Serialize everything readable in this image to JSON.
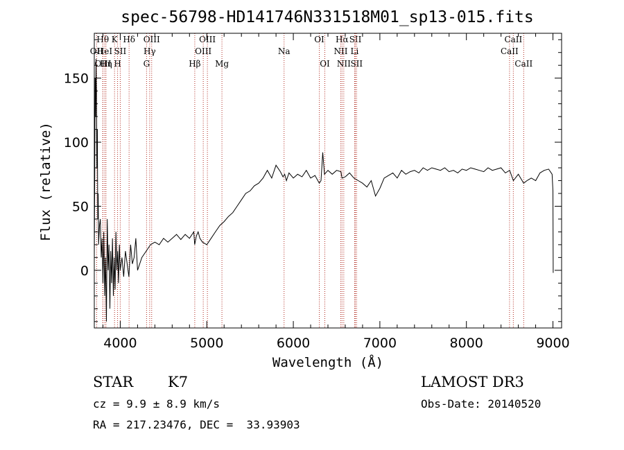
{
  "chart_data": {
    "type": "line",
    "title": "spec-56798-HD141746N331518M01_sp13-015.fits",
    "xlabel": "Wavelength (Å)",
    "ylabel": "Flux (relative)",
    "xlim": [
      3700,
      9100
    ],
    "ylim": [
      -45,
      185
    ],
    "xticks": [
      4000,
      5000,
      6000,
      7000,
      8000,
      9000
    ],
    "yticks": [
      0,
      50,
      100,
      150
    ],
    "grid": false,
    "line_color": "#000000",
    "marker_color": "#b0281e",
    "spectrum": {
      "x": [
        3700,
        3705,
        3710,
        3715,
        3720,
        3725,
        3730,
        3735,
        3740,
        3745,
        3750,
        3760,
        3770,
        3780,
        3790,
        3800,
        3810,
        3820,
        3830,
        3840,
        3850,
        3860,
        3870,
        3880,
        3890,
        3900,
        3910,
        3920,
        3930,
        3940,
        3950,
        3960,
        3970,
        3980,
        3990,
        4000,
        4020,
        4040,
        4060,
        4080,
        4100,
        4120,
        4140,
        4160,
        4180,
        4200,
        4250,
        4300,
        4350,
        4400,
        4450,
        4500,
        4550,
        4600,
        4650,
        4700,
        4750,
        4800,
        4850,
        4860,
        4880,
        4900,
        4920,
        4950,
        5000,
        5050,
        5100,
        5150,
        5200,
        5250,
        5300,
        5350,
        5400,
        5450,
        5500,
        5550,
        5600,
        5650,
        5700,
        5750,
        5800,
        5850,
        5880,
        5900,
        5920,
        5950,
        6000,
        6050,
        6100,
        6150,
        6200,
        6250,
        6300,
        6320,
        6340,
        6360,
        6400,
        6450,
        6500,
        6550,
        6563,
        6600,
        6650,
        6700,
        6750,
        6800,
        6850,
        6900,
        6950,
        7000,
        7050,
        7100,
        7150,
        7200,
        7250,
        7300,
        7350,
        7400,
        7450,
        7500,
        7550,
        7600,
        7650,
        7700,
        7750,
        7800,
        7850,
        7900,
        7950,
        8000,
        8050,
        8100,
        8150,
        8200,
        8250,
        8300,
        8350,
        8400,
        8450,
        8500,
        8542,
        8600,
        8662,
        8700,
        8750,
        8800,
        8850,
        8900,
        8950,
        8990,
        9000,
        9003
      ],
      "y": [
        10,
        70,
        150,
        120,
        165,
        140,
        80,
        110,
        40,
        60,
        20,
        35,
        40,
        10,
        25,
        -10,
        30,
        -20,
        10,
        -40,
        40,
        0,
        20,
        -30,
        15,
        -10,
        25,
        -20,
        10,
        -15,
        30,
        0,
        15,
        -10,
        20,
        0,
        10,
        -5,
        15,
        5,
        -5,
        20,
        5,
        10,
        25,
        0,
        10,
        15,
        20,
        22,
        20,
        25,
        22,
        25,
        28,
        24,
        28,
        25,
        30,
        20,
        27,
        30,
        25,
        22,
        20,
        25,
        30,
        35,
        38,
        42,
        45,
        50,
        55,
        60,
        62,
        66,
        68,
        72,
        78,
        72,
        82,
        77,
        73,
        75,
        70,
        76,
        72,
        75,
        73,
        78,
        72,
        74,
        68,
        70,
        92,
        75,
        78,
        75,
        78,
        77,
        72,
        73,
        76,
        72,
        70,
        68,
        65,
        70,
        58,
        64,
        72,
        74,
        76,
        72,
        78,
        75,
        77,
        78,
        76,
        80,
        78,
        80,
        79,
        78,
        80,
        77,
        78,
        76,
        79,
        78,
        80,
        79,
        78,
        77,
        80,
        78,
        79,
        80,
        76,
        78,
        70,
        75,
        68,
        70,
        72,
        70,
        76,
        78,
        79,
        75,
        62,
        -2
      ]
    },
    "line_markers": [
      {
        "label": "OII",
        "x": 3727,
        "row": 1
      },
      {
        "label": "Hθ",
        "x": 3798,
        "row": 0
      },
      {
        "label": "OIII",
        "x": 3800,
        "row": 2
      },
      {
        "label": "HeI",
        "x": 3820,
        "row": 1
      },
      {
        "label": "Hη",
        "x": 3835,
        "row": 2
      },
      {
        "label": "K",
        "x": 3934,
        "row": 0
      },
      {
        "label": "SII",
        "x": 4000,
        "row": 1
      },
      {
        "label": "H",
        "x": 3969,
        "row": 2
      },
      {
        "label": "Hδ",
        "x": 4102,
        "row": 0
      },
      {
        "label": "OIII",
        "x": 4363,
        "row": 0
      },
      {
        "label": "Hγ",
        "x": 4340,
        "row": 1
      },
      {
        "label": "G",
        "x": 4304,
        "row": 2
      },
      {
        "label": "Hβ",
        "x": 4861,
        "row": 2
      },
      {
        "label": "OIII",
        "x": 5007,
        "row": 0
      },
      {
        "label": "OIII",
        "x": 4959,
        "row": 1
      },
      {
        "label": "Mg",
        "x": 5175,
        "row": 2
      },
      {
        "label": "Na",
        "x": 5893,
        "row": 1
      },
      {
        "label": "OI",
        "x": 6300,
        "row": 0
      },
      {
        "label": "OI",
        "x": 6364,
        "row": 2
      },
      {
        "label": "Hα",
        "x": 6563,
        "row": 0
      },
      {
        "label": "NII",
        "x": 6548,
        "row": 1
      },
      {
        "label": "NII",
        "x": 6583,
        "row": 2
      },
      {
        "label": "SII",
        "x": 6717,
        "row": 0
      },
      {
        "label": "Li",
        "x": 6708,
        "row": 1
      },
      {
        "label": "SII",
        "x": 6731,
        "row": 2
      },
      {
        "label": "CaII",
        "x": 8542,
        "row": 0
      },
      {
        "label": "CaII",
        "x": 8498,
        "row": 1
      },
      {
        "label": "CaII",
        "x": 8662,
        "row": 2
      }
    ]
  },
  "footer": {
    "class_label": "STAR",
    "subclass": "K7",
    "survey": "LAMOST DR3",
    "cz": "cz = 9.9 ± 8.9 km/s",
    "obs_date": "Obs-Date: 20140520",
    "coords": "RA = 217.23476, DEC =  33.93903"
  }
}
